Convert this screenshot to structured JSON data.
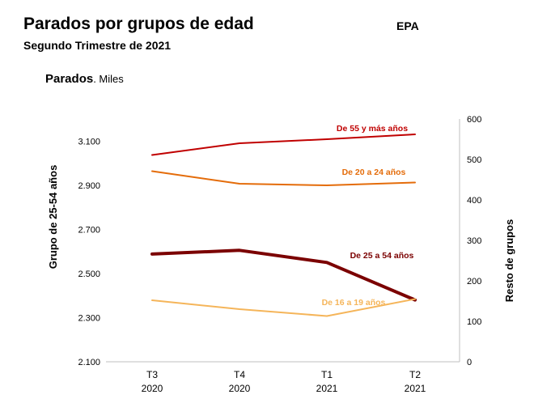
{
  "header": {
    "title": "Parados por grupos de edad",
    "subtitle": "Segundo Trimestre de 2021",
    "source": "EPA",
    "measure": "Parados",
    "unit": ". Miles"
  },
  "chart_data": {
    "type": "line",
    "categories": [
      [
        "T3",
        "2020"
      ],
      [
        "T4",
        "2020"
      ],
      [
        "T1",
        "2021"
      ],
      [
        "T2",
        "2021"
      ]
    ],
    "ylabel_left": "Grupo de 25-54 años",
    "ylabel_right": "Resto de grupos",
    "ylim_left": [
      2100,
      3200
    ],
    "ylim_right": [
      0,
      600
    ],
    "yticks_left": [
      "2.100",
      "2.300",
      "2.500",
      "2.700",
      "2.900",
      "3.100"
    ],
    "yticks_left_values": [
      2100,
      2300,
      2500,
      2700,
      2900,
      3100
    ],
    "yticks_right": [
      "0",
      "100",
      "200",
      "300",
      "400",
      "500",
      "600"
    ],
    "yticks_right_values": [
      0,
      100,
      200,
      300,
      400,
      500,
      600
    ],
    "grid": false,
    "series": [
      {
        "name": "De 55 y más años",
        "axis": "right",
        "color": "#c00000",
        "width": 2,
        "values": [
          511,
          540,
          550,
          562
        ]
      },
      {
        "name": "De 20 a 24 años",
        "axis": "right",
        "color": "#e46c0a",
        "width": 2,
        "values": [
          471,
          440,
          436,
          443
        ]
      },
      {
        "name": "De 25 a 54 años",
        "axis": "left",
        "color": "#7b0000",
        "width": 4,
        "values": [
          2588,
          2605,
          2550,
          2380
        ]
      },
      {
        "name": "De 16 a 19 años",
        "axis": "right",
        "color": "#f5b55a",
        "width": 2,
        "values": [
          152,
          130,
          113,
          155
        ]
      }
    ]
  }
}
